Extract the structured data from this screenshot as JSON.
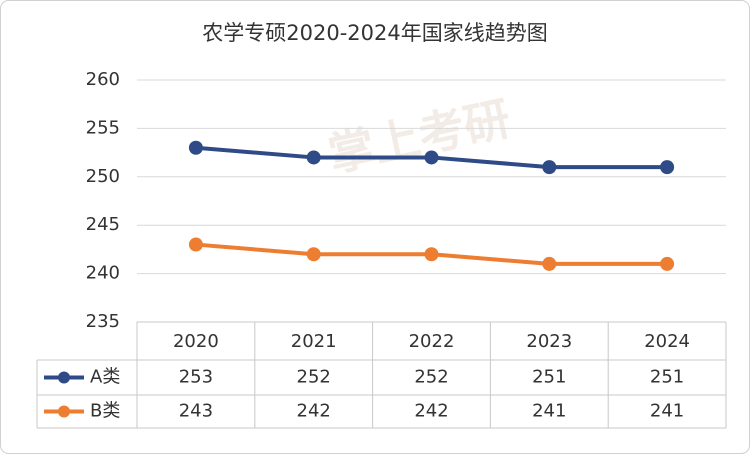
{
  "chart_data": {
    "type": "line",
    "title": "农学专硕2020-2024年国家线趋势图",
    "watermark": "掌上考研",
    "categories": [
      "2020",
      "2021",
      "2022",
      "2023",
      "2024"
    ],
    "series": [
      {
        "name": "A类",
        "color": "#2f4b87",
        "values": [
          253,
          252,
          252,
          251,
          251
        ]
      },
      {
        "name": "B类",
        "color": "#ed7d31",
        "values": [
          243,
          242,
          242,
          241,
          241
        ]
      }
    ],
    "ylim": [
      235,
      260
    ],
    "yticks": [
      235,
      240,
      245,
      250,
      255,
      260
    ],
    "grid": true,
    "data_table": true
  }
}
